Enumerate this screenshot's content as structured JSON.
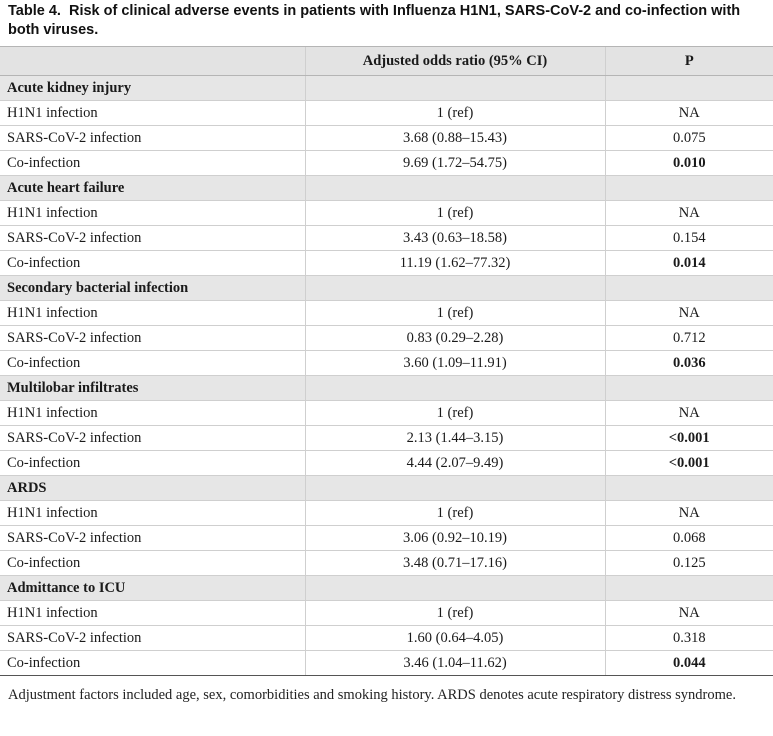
{
  "caption": {
    "label": "Table 4.",
    "text": "Risk of clinical adverse events in patients with Influenza H1N1, SARS-CoV-2 and co-infection with both viruses."
  },
  "table": {
    "headers": [
      "",
      "Adjusted odds ratio (95% CI)",
      "P"
    ],
    "sections": [
      {
        "title": "Acute kidney injury",
        "rows": [
          {
            "label": "H1N1 infection",
            "value": "1 (ref)",
            "p": "NA",
            "bold": false
          },
          {
            "label": "SARS-CoV-2 infection",
            "value": "3.68 (0.88–15.43)",
            "p": "0.075",
            "bold": false
          },
          {
            "label": "Co-infection",
            "value": "9.69 (1.72–54.75)",
            "p": "0.010",
            "bold": true
          }
        ]
      },
      {
        "title": "Acute heart failure",
        "rows": [
          {
            "label": "H1N1 infection",
            "value": "1 (ref)",
            "p": "NA",
            "bold": false
          },
          {
            "label": "SARS-CoV-2 infection",
            "value": "3.43 (0.63–18.58)",
            "p": "0.154",
            "bold": false
          },
          {
            "label": "Co-infection",
            "value": "11.19 (1.62–77.32)",
            "p": "0.014",
            "bold": true
          }
        ]
      },
      {
        "title": "Secondary bacterial infection",
        "rows": [
          {
            "label": "H1N1 infection",
            "value": "1 (ref)",
            "p": "NA",
            "bold": false
          },
          {
            "label": "SARS-CoV-2 infection",
            "value": "0.83 (0.29–2.28)",
            "p": "0.712",
            "bold": false
          },
          {
            "label": "Co-infection",
            "value": "3.60 (1.09–11.91)",
            "p": "0.036",
            "bold": true
          }
        ]
      },
      {
        "title": "Multilobar infiltrates",
        "rows": [
          {
            "label": "H1N1 infection",
            "value": "1 (ref)",
            "p": "NA",
            "bold": false
          },
          {
            "label": "SARS-CoV-2 infection",
            "value": "2.13 (1.44–3.15)",
            "p": "<0.001",
            "bold": true
          },
          {
            "label": "Co-infection",
            "value": "4.44 (2.07–9.49)",
            "p": "<0.001",
            "bold": true
          }
        ]
      },
      {
        "title": "ARDS",
        "rows": [
          {
            "label": "H1N1 infection",
            "value": "1 (ref)",
            "p": "NA",
            "bold": false
          },
          {
            "label": "SARS-CoV-2 infection",
            "value": "3.06 (0.92–10.19)",
            "p": "0.068",
            "bold": false
          },
          {
            "label": "Co-infection",
            "value": "3.48 (0.71–17.16)",
            "p": "0.125",
            "bold": false
          }
        ]
      },
      {
        "title": "Admittance to ICU",
        "rows": [
          {
            "label": "H1N1 infection",
            "value": "1 (ref)",
            "p": "NA",
            "bold": false
          },
          {
            "label": "SARS-CoV-2 infection",
            "value": "1.60 (0.64–4.05)",
            "p": "0.318",
            "bold": false
          },
          {
            "label": "Co-infection",
            "value": "3.46 (1.04–11.62)",
            "p": "0.044",
            "bold": true
          }
        ]
      }
    ]
  },
  "footnote": "Adjustment factors included age, sex, comorbidities and smoking history. ARDS denotes acute respiratory distress syndrome."
}
